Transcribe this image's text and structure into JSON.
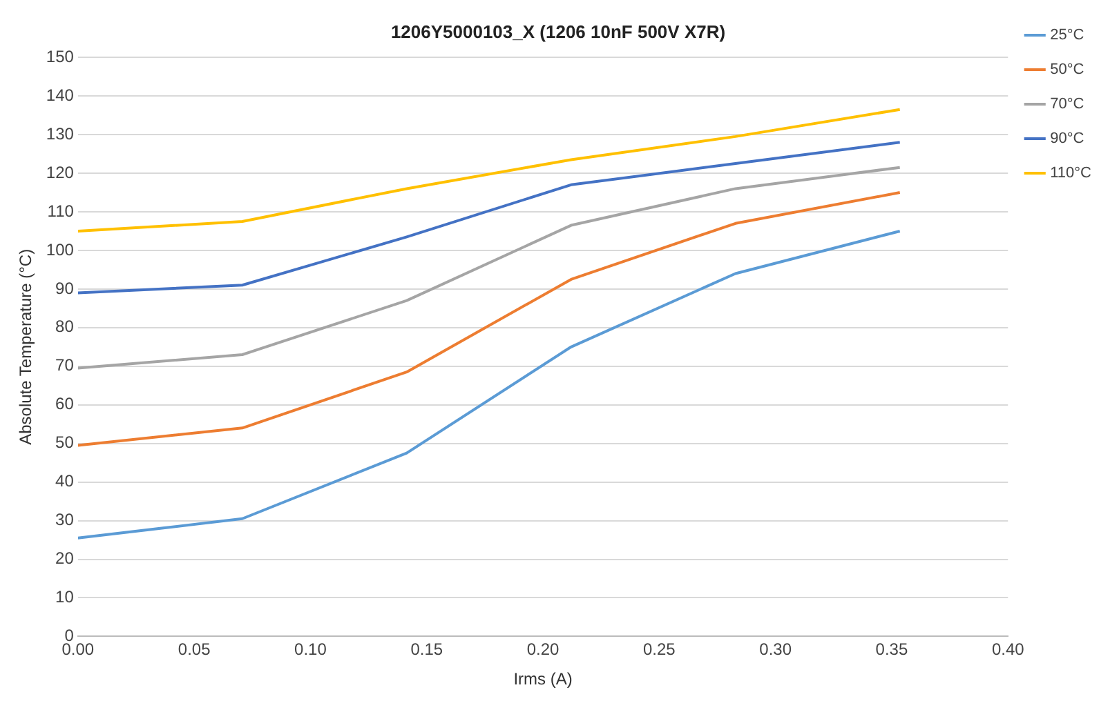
{
  "chart_data": {
    "type": "line",
    "title": "1206Y5000103_X (1206 10nF 500V X7R)",
    "xlabel": "Irms (A)",
    "ylabel": "Absolute Temperature (°C)",
    "x": [
      0,
      0.0707,
      0.1414,
      0.2121,
      0.2828,
      0.3535
    ],
    "series": [
      {
        "name": "25°C",
        "color": "#5b9bd5",
        "values": [
          25.5,
          30.5,
          47.5,
          75,
          94,
          105
        ]
      },
      {
        "name": "50°C",
        "color": "#ed7d31",
        "values": [
          49.5,
          54,
          68.5,
          92.5,
          107,
          115
        ]
      },
      {
        "name": "70°C",
        "color": "#a5a5a5",
        "values": [
          69.5,
          73,
          87,
          106.5,
          116,
          121.5
        ]
      },
      {
        "name": "90°C",
        "color": "#4472c4",
        "values": [
          89,
          91,
          103.5,
          117,
          122.5,
          128
        ]
      },
      {
        "name": "110°C",
        "color": "#ffc000",
        "values": [
          105,
          107.5,
          116,
          123.5,
          129.5,
          136.5
        ]
      }
    ],
    "xlim": [
      0,
      0.4
    ],
    "xticks": [
      {
        "value": 0,
        "label": "0.00"
      },
      {
        "value": 0.05,
        "label": "0.05"
      },
      {
        "value": 0.1,
        "label": "0.10"
      },
      {
        "value": 0.15,
        "label": "0.15"
      },
      {
        "value": 0.2,
        "label": "0.20"
      },
      {
        "value": 0.25,
        "label": "0.25"
      },
      {
        "value": 0.3,
        "label": "0.30"
      },
      {
        "value": 0.35,
        "label": "0.35"
      },
      {
        "value": 0.4,
        "label": "0.40"
      }
    ],
    "ylim": [
      0,
      150
    ],
    "yticks": [
      0,
      10,
      20,
      30,
      40,
      50,
      60,
      70,
      80,
      90,
      100,
      110,
      120,
      130,
      140,
      150
    ],
    "grid": "y",
    "legend": "right",
    "marker": "none",
    "line_style": "solid"
  }
}
